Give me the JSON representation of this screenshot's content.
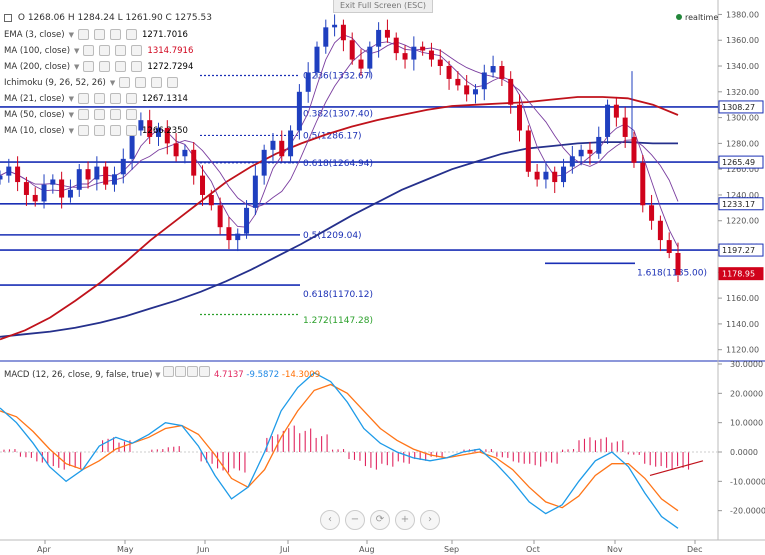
{
  "window": {
    "exit_fullscreen_label": "Exit Full Screen (ESC)",
    "realtime_label": "realtime"
  },
  "header": {
    "ohlc": "O 1268.06 H 1284.24 L 1261.90 C 1275.53"
  },
  "indicators": [
    {
      "label": "EMA (3, close)",
      "value": "1271.7016",
      "color": "#000000"
    },
    {
      "label": "MA (100, close)",
      "value": "1314.7916",
      "color": "#d0021b"
    },
    {
      "label": "MA (200, close)",
      "value": "1272.7294",
      "color": "#000000"
    },
    {
      "label": "Ichimoku (9, 26, 52, 26)",
      "value": "",
      "color": "#000000"
    },
    {
      "label": "MA (21, close)",
      "value": "1267.1314",
      "color": "#000000"
    },
    {
      "label": "MA (50, close)",
      "value": "",
      "color": "#000000"
    },
    {
      "label": "MA (10, close)",
      "value": "1266.2350",
      "color": "#000000"
    }
  ],
  "macd_header": {
    "label": "MACD (12, 26, close, 9, false, true)",
    "v1": "4.7137",
    "v2": "-9.5872",
    "v3": "-14.3009",
    "c1": "#e0245e",
    "c2": "#1e88e5",
    "c3": "#ff6d00"
  },
  "nav_buttons": [
    "‹",
    "−",
    "⟳",
    "+",
    "›"
  ],
  "colors": {
    "candle_up": "#1f3fbf",
    "candle_down": "#d0021b",
    "ma100": "#c0121b",
    "ma200": "#25308c",
    "hline": "#1a2fb5",
    "fib_text": "#1a2fb5",
    "ext_green": "#2ca02c",
    "macd_line": "#1e9be8",
    "signal_line": "#ff7518",
    "hist": "#e0245e",
    "price_tag": "#d0021b"
  },
  "chart_data": {
    "type": "candlestick",
    "x_ticks": [
      "Apr",
      "May",
      "Jun",
      "Jul",
      "Aug",
      "Sep",
      "Oct",
      "Nov",
      "Dec"
    ],
    "y_ticks": [
      1120,
      1140,
      1160,
      1180,
      1200,
      1220,
      1240,
      1260,
      1280,
      1300,
      1320,
      1340,
      1360,
      1380
    ],
    "ylim": [
      1112,
      1385
    ],
    "close_path": [
      1255,
      1262,
      1250,
      1240,
      1235,
      1248,
      1252,
      1238,
      1244,
      1260,
      1252,
      1262,
      1248,
      1256,
      1268,
      1290,
      1298,
      1285,
      1292,
      1280,
      1270,
      1275,
      1255,
      1240,
      1232,
      1215,
      1205,
      1210,
      1230,
      1255,
      1275,
      1282,
      1270,
      1290,
      1320,
      1335,
      1355,
      1370,
      1372,
      1360,
      1345,
      1338,
      1355,
      1368,
      1362,
      1350,
      1345,
      1355,
      1352,
      1345,
      1340,
      1330,
      1325,
      1318,
      1322,
      1335,
      1340,
      1330,
      1310,
      1290,
      1258,
      1252,
      1258,
      1250,
      1262,
      1270,
      1275,
      1272,
      1285,
      1310,
      1300,
      1285,
      1265,
      1232,
      1220,
      1205,
      1195,
      1178
    ],
    "ma100": [
      1128,
      1135,
      1145,
      1158,
      1172,
      1188,
      1205,
      1220,
      1235,
      1250,
      1262,
      1272,
      1280,
      1287,
      1293,
      1298,
      1302,
      1306,
      1309,
      1310,
      1311,
      1312,
      1314,
      1316,
      1316,
      1315,
      1310,
      1302
    ],
    "ma200": [
      1130,
      1132,
      1134,
      1137,
      1141,
      1146,
      1152,
      1158,
      1165,
      1173,
      1182,
      1192,
      1202,
      1213,
      1224,
      1234,
      1244,
      1252,
      1260,
      1266,
      1272,
      1276,
      1278,
      1280,
      1281,
      1281,
      1280,
      1280
    ],
    "price_levels": [
      {
        "value": 1308.27,
        "label": "1308.27"
      },
      {
        "value": 1265.49,
        "label": "1265.49"
      },
      {
        "value": 1233.17,
        "label": "1233.17"
      },
      {
        "value": 1197.27,
        "label": "1197.27"
      },
      {
        "value": 1178.95,
        "label": "1178.95"
      }
    ],
    "fib_labels": [
      {
        "value": 1332.67,
        "label": "0.236(1332.67)"
      },
      {
        "value": 1307.4,
        "label": "0.382(1307.40)"
      },
      {
        "value": 1286.17,
        "label": "0.5(1286.17)"
      },
      {
        "value": 1264.94,
        "label": "0.618(1264.94)"
      },
      {
        "value": 1209.04,
        "label": "0.5(1209.04)"
      },
      {
        "value": 1170.12,
        "label": "0.618(1170.12)"
      },
      {
        "value": 1147.28,
        "label": "1.272(1147.28)"
      },
      {
        "value": 1185.0,
        "label": "1.618(1185.00)"
      }
    ],
    "macd": {
      "y_ticks": [
        30,
        20,
        10,
        0,
        -10,
        -20
      ],
      "ylim": [
        -30,
        30
      ],
      "macd": [
        15,
        10,
        3,
        -5,
        -10,
        -6,
        2,
        5,
        3,
        6,
        10,
        9,
        2,
        -8,
        -16,
        -12,
        0,
        14,
        22,
        27,
        24,
        17,
        8,
        3,
        0,
        -2,
        -3,
        -2,
        0,
        1,
        -4,
        -10,
        -17,
        -21,
        -18,
        -10,
        -3,
        0,
        -5,
        -14,
        -22,
        -26
      ],
      "signal": [
        14,
        12,
        7,
        1,
        -4,
        -6,
        -3,
        1,
        3,
        5,
        8,
        9,
        6,
        -1,
        -9,
        -12,
        -6,
        5,
        14,
        21,
        23,
        20,
        14,
        8,
        4,
        1,
        -1,
        -2,
        -1,
        0,
        -2,
        -6,
        -12,
        -17,
        -19,
        -15,
        -8,
        -4,
        -4,
        -9,
        -16,
        -20
      ],
      "histogram": [
        1,
        -2,
        -4,
        -6,
        -6,
        0,
        5,
        4,
        0,
        1,
        2,
        0,
        -4,
        -7,
        -7,
        0,
        6,
        9,
        8,
        6,
        1,
        -3,
        -6,
        -5,
        -4,
        -3,
        -2,
        0,
        1,
        1,
        -2,
        -4,
        -5,
        -4,
        1,
        5,
        5,
        4,
        -1,
        -5,
        -6,
        -6
      ]
    }
  }
}
